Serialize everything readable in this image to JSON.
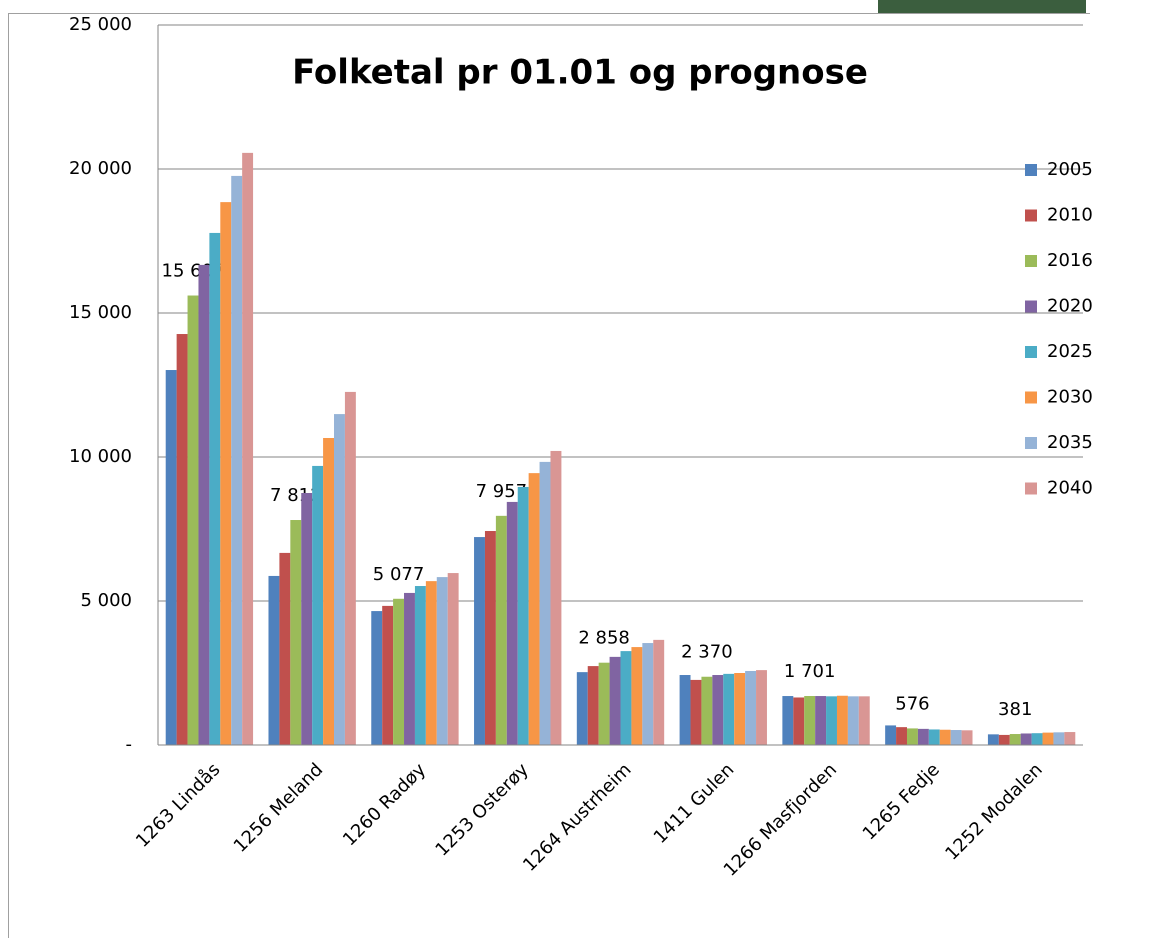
{
  "chart_data": {
    "type": "bar",
    "title": "Folketal pr 01.01 og prognose",
    "categories": [
      "1263 Lindås",
      "1256 Meland",
      "1260 Radøy",
      "1253 Osterøy",
      "1264 Austrheim",
      "1411 Gulen",
      "1266 Masfjorden",
      "1265 Fedje",
      "1252 Modalen"
    ],
    "series": [
      {
        "name": "2005",
        "color": "#4f81bd",
        "values": [
          13020,
          5870,
          4650,
          7220,
          2530,
          2430,
          1700,
          680,
          370
        ]
      },
      {
        "name": "2010",
        "color": "#c0504d",
        "values": [
          14270,
          6670,
          4830,
          7430,
          2740,
          2260,
          1650,
          620,
          350
        ]
      },
      {
        "name": "2016",
        "color": "#9bbb59",
        "values": [
          15607,
          7812,
          5077,
          7957,
          2858,
          2370,
          1701,
          576,
          381
        ],
        "value_labels": [
          "15 607",
          "7 812",
          "5 077",
          "7 957",
          "2 858",
          "2 370",
          "1 701",
          "576",
          "381"
        ]
      },
      {
        "name": "2020",
        "color": "#8064a2",
        "values": [
          16670,
          8750,
          5280,
          8440,
          3060,
          2430,
          1700,
          560,
          400
        ]
      },
      {
        "name": "2025",
        "color": "#4bacc6",
        "values": [
          17780,
          9690,
          5520,
          8960,
          3260,
          2470,
          1690,
          540,
          410
        ]
      },
      {
        "name": "2030",
        "color": "#f79646",
        "values": [
          18850,
          10660,
          5690,
          9440,
          3400,
          2500,
          1710,
          530,
          430
        ]
      },
      {
        "name": "2035",
        "color": "#95b3d7",
        "values": [
          19760,
          11490,
          5830,
          9830,
          3540,
          2570,
          1690,
          520,
          440
        ]
      },
      {
        "name": "2040",
        "color": "#d99694",
        "values": [
          20560,
          12260,
          5970,
          10210,
          3650,
          2600,
          1690,
          510,
          450
        ]
      }
    ],
    "ylim": [
      0,
      25000
    ],
    "yticks": [
      {
        "value": 0,
        "label": "-"
      },
      {
        "value": 5000,
        "label": "5 000"
      },
      {
        "value": 10000,
        "label": "10 000"
      },
      {
        "value": 15000,
        "label": "15 000"
      },
      {
        "value": 20000,
        "label": "20 000"
      },
      {
        "value": 25000,
        "label": "25 000"
      }
    ],
    "grid": true,
    "legend": "right"
  }
}
